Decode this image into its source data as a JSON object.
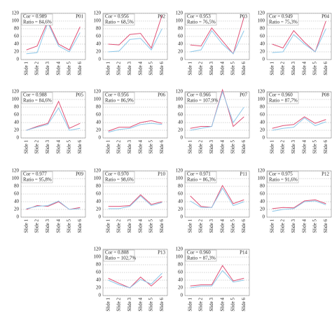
{
  "chart_data": [
    {
      "type": "line",
      "label": "P01",
      "cor": "Cor = 0.989",
      "ratio": "Ratio = 84,6%",
      "categories": [
        "Slide 1",
        "Slide 2",
        "Slide 3",
        "Slide 4",
        "Slide 5",
        "Slide 6"
      ],
      "ylim": [
        0,
        120
      ],
      "yticks": [
        0,
        20,
        40,
        60,
        80,
        100,
        120
      ],
      "grid": true,
      "series": [
        {
          "color": "#e05277",
          "values": [
            25,
            35,
            100,
            40,
            25,
            85
          ]
        },
        {
          "color": "#8fc9ea",
          "values": [
            15,
            18,
            95,
            35,
            20,
            70
          ]
        }
      ]
    },
    {
      "type": "line",
      "label": "P02",
      "cor": "Cor = 0.956",
      "ratio": "Ratio = 68,5%",
      "categories": [
        "Slide 1",
        "Slide 2",
        "Slide 3",
        "Slide 4",
        "Slide 5",
        "Slide 6"
      ],
      "ylim": [
        0,
        120
      ],
      "yticks": [
        0,
        20,
        40,
        60,
        80,
        100,
        120
      ],
      "grid": true,
      "series": [
        {
          "color": "#e05277",
          "values": [
            40,
            38,
            65,
            68,
            30,
            115
          ]
        },
        {
          "color": "#8fc9ea",
          "values": [
            20,
            22,
            52,
            55,
            25,
            80
          ]
        }
      ]
    },
    {
      "type": "line",
      "label": "P03",
      "cor": "Cor = 0.953",
      "ratio": "Ratio = 76,5%",
      "categories": [
        "Slide 1",
        "Slide 2",
        "Slide 3",
        "Slide 4",
        "Slide 5",
        "Slide 6"
      ],
      "ylim": [
        0,
        120
      ],
      "yticks": [
        0,
        20,
        40,
        60,
        80,
        100,
        120
      ],
      "grid": true,
      "series": [
        {
          "color": "#e05277",
          "values": [
            38,
            35,
            82,
            48,
            15,
            110
          ]
        },
        {
          "color": "#8fc9ea",
          "values": [
            20,
            25,
            75,
            40,
            15,
            75
          ]
        }
      ]
    },
    {
      "type": "line",
      "label": "P04",
      "cor": "Cor = 0.949",
      "ratio": "Ratio = 75,3%",
      "categories": [
        "Slide 1",
        "Slide 2",
        "Slide 3",
        "Slide 4",
        "Slide 5",
        "Slide 6"
      ],
      "ylim": [
        0,
        120
      ],
      "yticks": [
        0,
        20,
        40,
        60,
        80,
        100,
        120
      ],
      "grid": true,
      "series": [
        {
          "color": "#e05277",
          "values": [
            40,
            30,
            75,
            45,
            20,
            100
          ]
        },
        {
          "color": "#8fc9ea",
          "values": [
            18,
            20,
            65,
            40,
            20,
            80
          ]
        }
      ]
    },
    {
      "type": "line",
      "label": "P05",
      "cor": "Cor = 0.988",
      "ratio": "Ratio = 84,6%",
      "categories": [
        "Slide 1",
        "Slide 2",
        "Slide 3",
        "Slide 4",
        "Slide 5",
        "Slide 6"
      ],
      "ylim": [
        0,
        120
      ],
      "yticks": [
        0,
        20,
        40,
        60,
        80,
        100,
        120
      ],
      "grid": true,
      "series": [
        {
          "color": "#e05277",
          "values": [
            20,
            30,
            38,
            95,
            25,
            38
          ]
        },
        {
          "color": "#8fc9ea",
          "values": [
            20,
            28,
            35,
            78,
            20,
            25
          ]
        }
      ]
    },
    {
      "type": "line",
      "label": "P06",
      "cor": "Cor = 0.956",
      "ratio": "Ratio = 86,9%",
      "categories": [
        "Slide 1",
        "Slide 2",
        "Slide 3",
        "Slide 4",
        "Slide 5",
        "Slide 6"
      ],
      "ylim": [
        0,
        120
      ],
      "yticks": [
        0,
        20,
        40,
        60,
        80,
        100,
        120
      ],
      "grid": true,
      "series": [
        {
          "color": "#e05277",
          "values": [
            18,
            28,
            28,
            40,
            45,
            38
          ]
        },
        {
          "color": "#8fc9ea",
          "values": [
            15,
            22,
            25,
            35,
            38,
            35
          ]
        }
      ]
    },
    {
      "type": "line",
      "label": "P07",
      "cor": "Cor = 0.966",
      "ratio": "Ratio = 107,9%",
      "categories": [
        "Slide 1",
        "Slide 2",
        "Slide 3",
        "Slide 4",
        "Slide 5",
        "Slide 6"
      ],
      "ylim": [
        0,
        120
      ],
      "yticks": [
        0,
        20,
        40,
        60,
        80,
        100,
        120
      ],
      "grid": true,
      "series": [
        {
          "color": "#e05277",
          "values": [
            25,
            30,
            30,
            125,
            30,
            55
          ]
        },
        {
          "color": "#8fc9ea",
          "values": [
            20,
            25,
            30,
            120,
            40,
            80
          ]
        }
      ]
    },
    {
      "type": "line",
      "label": "P08",
      "cor": "Cor = 0.960",
      "ratio": "Ratio = 87,7%",
      "categories": [
        "Slide 1",
        "Slide 2",
        "Slide 3",
        "Slide 4",
        "Slide 5",
        "Slide 6"
      ],
      "ylim": [
        0,
        120
      ],
      "yticks": [
        0,
        20,
        40,
        60,
        80,
        100,
        120
      ],
      "grid": true,
      "series": [
        {
          "color": "#e05277",
          "values": [
            25,
            32,
            35,
            55,
            38,
            48
          ]
        },
        {
          "color": "#8fc9ea",
          "values": [
            20,
            25,
            28,
            52,
            32,
            42
          ]
        }
      ]
    },
    {
      "type": "line",
      "label": "P09",
      "cor": "Cor = 0.977",
      "ratio": "Ratio = 95,8%",
      "categories": [
        "Slide 1",
        "Slide 2",
        "Slide 3",
        "Slide 4",
        "Slide 5",
        "Slide 6"
      ],
      "ylim": [
        0,
        120
      ],
      "yticks": [
        0,
        20,
        40,
        60,
        80,
        100,
        120
      ],
      "grid": true,
      "series": [
        {
          "color": "#e05277",
          "values": [
            20,
            30,
            28,
            40,
            20,
            25
          ]
        },
        {
          "color": "#8fc9ea",
          "values": [
            22,
            28,
            30,
            42,
            20,
            22
          ]
        }
      ]
    },
    {
      "type": "line",
      "label": "P10",
      "cor": "Cor = 0.970",
      "ratio": "Ratio = 98,6%",
      "categories": [
        "Slide 1",
        "Slide 2",
        "Slide 3",
        "Slide 4",
        "Slide 5",
        "Slide 6"
      ],
      "ylim": [
        0,
        120
      ],
      "yticks": [
        0,
        20,
        40,
        60,
        80,
        100,
        120
      ],
      "grid": true,
      "series": [
        {
          "color": "#e05277",
          "values": [
            28,
            28,
            30,
            58,
            33,
            40
          ]
        },
        {
          "color": "#8fc9ea",
          "values": [
            22,
            22,
            28,
            55,
            30,
            38
          ]
        }
      ]
    },
    {
      "type": "line",
      "label": "P11",
      "cor": "Cor = 0.971",
      "ratio": "Ratio = 86,3%",
      "categories": [
        "Slide 1",
        "Slide 2",
        "Slide 3",
        "Slide 4",
        "Slide 5",
        "Slide 6"
      ],
      "ylim": [
        0,
        120
      ],
      "yticks": [
        0,
        20,
        40,
        60,
        80,
        100,
        120
      ],
      "grid": true,
      "series": [
        {
          "color": "#e05277",
          "values": [
            55,
            28,
            25,
            82,
            35,
            45
          ]
        },
        {
          "color": "#8fc9ea",
          "values": [
            42,
            25,
            25,
            75,
            30,
            40
          ]
        }
      ]
    },
    {
      "type": "line",
      "label": "P12",
      "cor": "Cor = 0.975",
      "ratio": "Ratio = 91,6%",
      "categories": [
        "Slide 1",
        "Slide 2",
        "Slide 3",
        "Slide 4",
        "Slide 5",
        "Slide 6"
      ],
      "ylim": [
        0,
        120
      ],
      "yticks": [
        0,
        20,
        40,
        60,
        80,
        100,
        120
      ],
      "grid": true,
      "series": [
        {
          "color": "#e05277",
          "values": [
            22,
            25,
            24,
            42,
            45,
            35
          ]
        },
        {
          "color": "#8fc9ea",
          "values": [
            15,
            20,
            22,
            40,
            42,
            32
          ]
        }
      ]
    },
    {
      "type": "line",
      "label": "P13",
      "cor": "Cor = 0.808",
      "ratio": "Ratio = 102,7%",
      "categories": [
        "Slide 1",
        "Slide 2",
        "Slide 3",
        "Slide 4",
        "Slide 5",
        "Slide 6"
      ],
      "ylim": [
        0,
        120
      ],
      "yticks": [
        0,
        20,
        40,
        60,
        80,
        100,
        120
      ],
      "grid": true,
      "series": [
        {
          "color": "#e05277",
          "values": [
            45,
            32,
            20,
            48,
            25,
            50
          ]
        },
        {
          "color": "#8fc9ea",
          "values": [
            40,
            28,
            20,
            42,
            30,
            58
          ]
        }
      ]
    },
    {
      "type": "line",
      "label": "P14",
      "cor": "Cor = 0.960",
      "ratio": "Ratio = 87,3%",
      "categories": [
        "Slide 1",
        "Slide 2",
        "Slide 3",
        "Slide 4",
        "Slide 5",
        "Slide 6"
      ],
      "ylim": [
        0,
        120
      ],
      "yticks": [
        0,
        20,
        40,
        60,
        80,
        100,
        120
      ],
      "grid": true,
      "series": [
        {
          "color": "#e05277",
          "values": [
            25,
            28,
            28,
            78,
            38,
            45
          ]
        },
        {
          "color": "#8fc9ea",
          "values": [
            20,
            25,
            25,
            65,
            35,
            40
          ]
        }
      ]
    }
  ]
}
